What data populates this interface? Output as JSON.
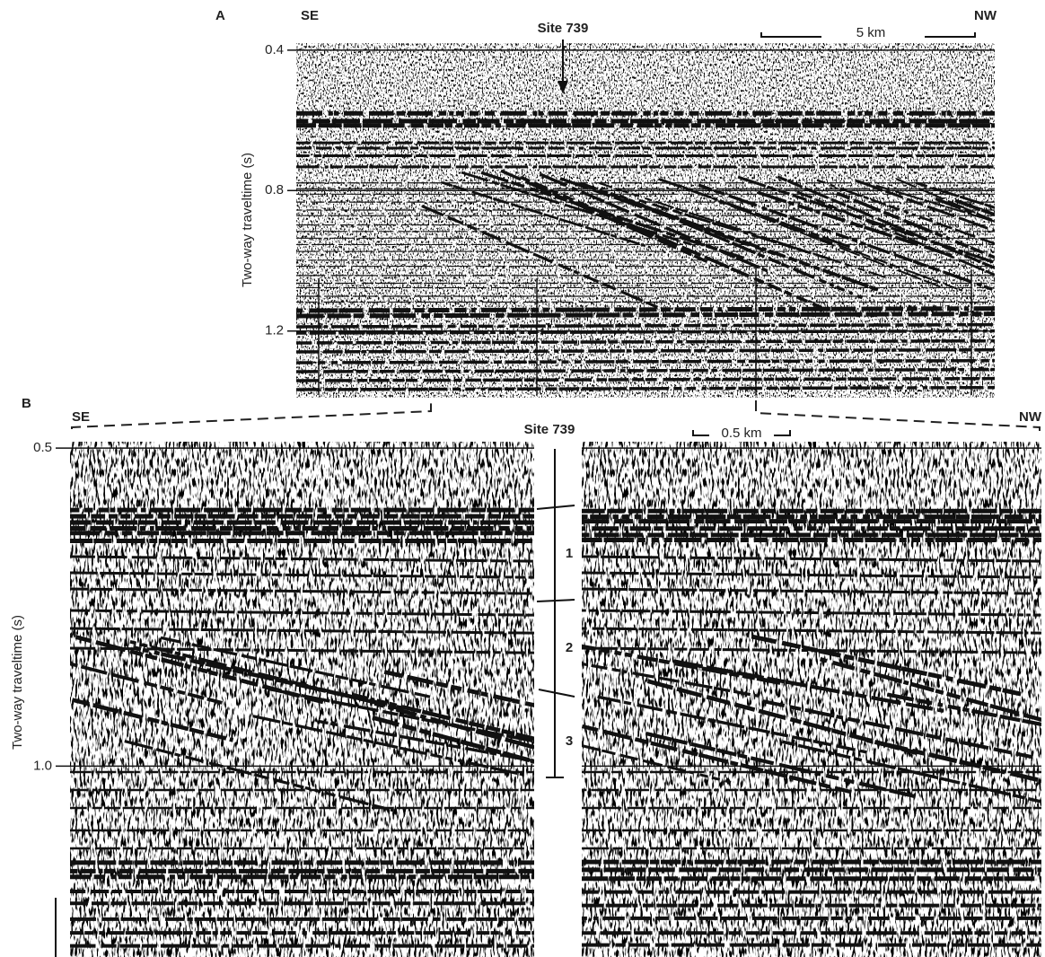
{
  "panel_a": {
    "label": "A",
    "left_direction": "SE",
    "right_direction": "NW",
    "site": "Site 739",
    "scale": "5 km",
    "y_axis_label": "Two-way traveltime (s)",
    "ylim": [
      0.38,
      1.39
    ],
    "yticks": [
      0.4,
      0.8,
      1.2
    ]
  },
  "panel_b": {
    "label": "B",
    "left_direction": "SE",
    "right_direction": "NW",
    "site": "Site 739",
    "scale": "0.5 km",
    "y_axis_label": "Two-way traveltime (s)",
    "ylim": [
      0.49,
      1.3
    ],
    "yticks": [
      0.5,
      {
        "value": 1,
        "label": "1.0"
      }
    ],
    "units": [
      "1",
      "2",
      "3"
    ]
  }
}
